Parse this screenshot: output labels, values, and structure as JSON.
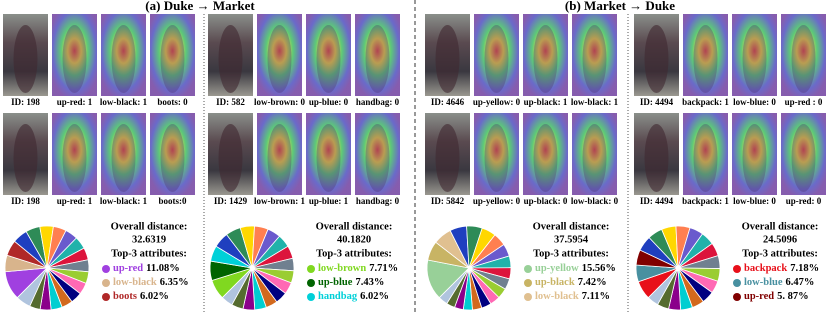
{
  "titles": [
    "(a) Duke → Market",
    "(b) Market → Duke"
  ],
  "slice_palette": [
    "#1f3fbf",
    "#2e8b57",
    "#ffd700",
    "#ff7f50",
    "#6a5acd",
    "#20b2aa",
    "#dc143c",
    "#708090",
    "#9acd32",
    "#ff69b4",
    "#000080",
    "#d2691e",
    "#00ced1",
    "#8b008b",
    "#556b2f",
    "#b0c4de"
  ],
  "groups": [
    {
      "captions": [
        [
          "ID: 198",
          "up-red: 1",
          "low-black: 1",
          "boots: 0"
        ],
        [
          "ID: 198",
          "up-red: 1",
          "low-black: 1",
          "boots:0"
        ]
      ],
      "pie": {
        "distance_label": "Overall distance:",
        "distance": "32.6319",
        "top_label": "Top-3 attributes:",
        "attributes": [
          {
            "name": "up-red",
            "value": 11.08,
            "label": "11.08%",
            "color": "#a040e0"
          },
          {
            "name": "low-black",
            "value": 6.35,
            "label": "6.35%",
            "color": "#d8b48c"
          },
          {
            "name": "boots",
            "value": 6.02,
            "label": "6.02%",
            "color": "#b02828"
          }
        ],
        "other_values": [
          5.8,
          5.5,
          5.2,
          5.0,
          4.9,
          4.8,
          4.7,
          4.6,
          4.5,
          4.5,
          4.4,
          4.3,
          4.3,
          4.2,
          4.1,
          5.75
        ]
      }
    },
    {
      "captions": [
        [
          "ID: 582",
          "low-brown: 0",
          "up-blue: 0",
          "handbag: 0"
        ],
        [
          "ID: 1429",
          "low-brown: 1",
          "up-blue: 1",
          "handbag: 0"
        ]
      ],
      "pie": {
        "distance_label": "Overall distance:",
        "distance": "40.1820",
        "top_label": "Top-3 attributes:",
        "attributes": [
          {
            "name": "low-brown",
            "value": 7.71,
            "label": "7.71%",
            "color": "#80d820"
          },
          {
            "name": "up-blue",
            "value": 7.43,
            "label": "7.43%",
            "color": "#006400"
          },
          {
            "name": "handbag",
            "value": 6.02,
            "label": "6.02%",
            "color": "#00d0d8"
          }
        ],
        "other_values": [
          6.0,
          5.8,
          5.5,
          5.3,
          5.1,
          5.0,
          4.9,
          4.8,
          4.7,
          4.6,
          4.6,
          4.5,
          4.5,
          4.5,
          4.5,
          4.54
        ]
      }
    },
    {
      "captions": [
        [
          "ID: 4646",
          "up-yellow: 0",
          "up-black: 1",
          "low-black: 1"
        ],
        [
          "ID: 5842",
          "up-yellow: 0",
          "up-black: 0",
          "low-black: 0"
        ]
      ],
      "pie": {
        "distance_label": "Overall distance:",
        "distance": "37.5954",
        "top_label": "Top-3 attributes:",
        "attributes": [
          {
            "name": "up-yellow",
            "value": 15.56,
            "label": "15.56%",
            "color": "#98d098"
          },
          {
            "name": "up-black",
            "value": 7.42,
            "label": "7.42%",
            "color": "#c8b464"
          },
          {
            "name": "low-black",
            "value": 7.11,
            "label": "7.11%",
            "color": "#e0c090"
          }
        ],
        "other_values": [
          6.5,
          6.0,
          5.5,
          5.0,
          4.8,
          4.5,
          4.3,
          4.2,
          4.0,
          3.9,
          3.8,
          3.6,
          3.5,
          3.4,
          3.3,
          3.61
        ]
      }
    },
    {
      "captions": [
        [
          "ID: 4494",
          "backpack: 1",
          "low-blue: 0",
          "up-red : 0"
        ],
        [
          "ID: 4494",
          "backpack: 1",
          "low-blue: 0",
          "up-red: 0"
        ]
      ],
      "pie": {
        "distance_label": "Overall distance:",
        "distance": "24.5096",
        "top_label": "Top-3 attributes:",
        "attributes": [
          {
            "name": "backpack",
            "value": 7.18,
            "label": "7.18%",
            "color": "#e8101a"
          },
          {
            "name": "low-blue",
            "value": 6.47,
            "label": "6.47%",
            "color": "#4890a0"
          },
          {
            "name": "up-red",
            "value": 5.87,
            "label": "5. 87%",
            "color": "#800000"
          }
        ],
        "other_values": [
          5.9,
          5.7,
          5.6,
          5.4,
          5.3,
          5.2,
          5.1,
          5.0,
          4.9,
          4.8,
          4.8,
          4.7,
          4.6,
          4.6,
          4.5,
          4.38
        ]
      }
    }
  ]
}
